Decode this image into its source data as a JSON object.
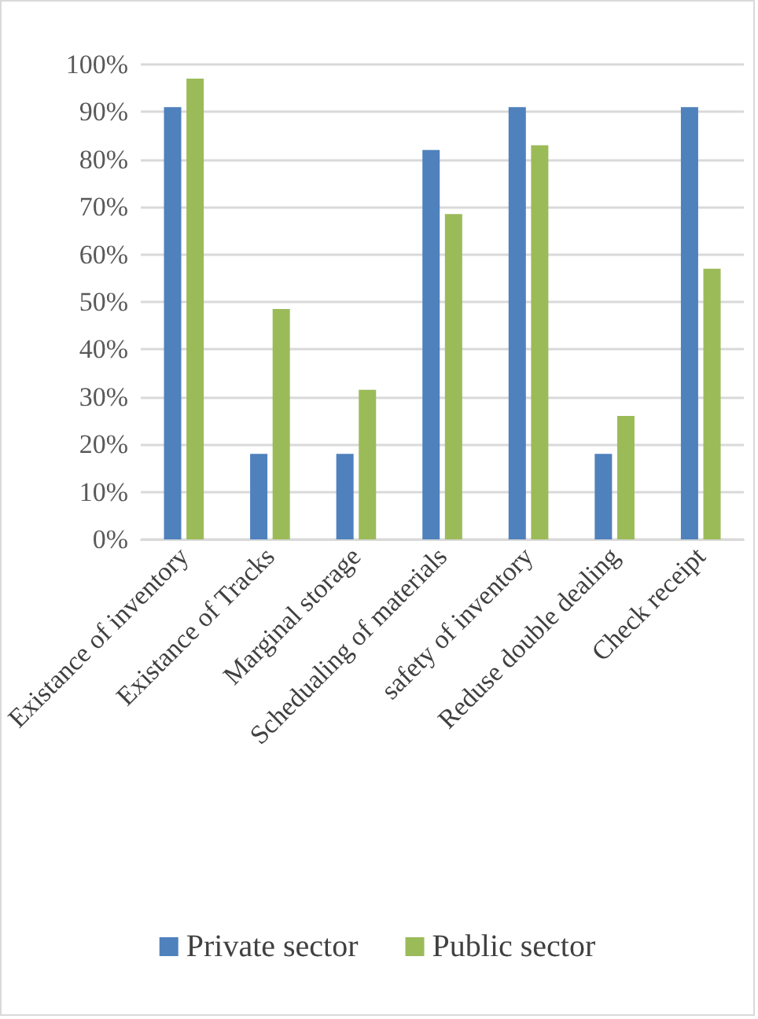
{
  "chart_data": {
    "type": "bar",
    "categories": [
      "Existance of inventory",
      "Existance of Tracks",
      "Marginal storage",
      "Schedualing of materials",
      "safety of inventory",
      "Reduse double dealing",
      "Check receipt"
    ],
    "series": [
      {
        "name": "Private sector",
        "color": "#4f81bd",
        "values": [
          91,
          18,
          18,
          82,
          91,
          18,
          91
        ]
      },
      {
        "name": "Public sector",
        "color": "#9bbb59",
        "values": [
          97,
          48.5,
          31.5,
          68.5,
          83,
          26,
          57
        ]
      }
    ],
    "ylim": [
      0,
      100
    ],
    "yticks": [
      {
        "value": 0,
        "label": "0%"
      },
      {
        "value": 10,
        "label": "10%"
      },
      {
        "value": 20,
        "label": "20%"
      },
      {
        "value": 30,
        "label": "30%"
      },
      {
        "value": 40,
        "label": "40%"
      },
      {
        "value": 50,
        "label": "50%"
      },
      {
        "value": 60,
        "label": "60%"
      },
      {
        "value": 70,
        "label": "70%"
      },
      {
        "value": 80,
        "label": "80%"
      },
      {
        "value": 90,
        "label": "90%"
      },
      {
        "value": 100,
        "label": "100%"
      }
    ],
    "grid": "y",
    "legend": "bottom"
  }
}
